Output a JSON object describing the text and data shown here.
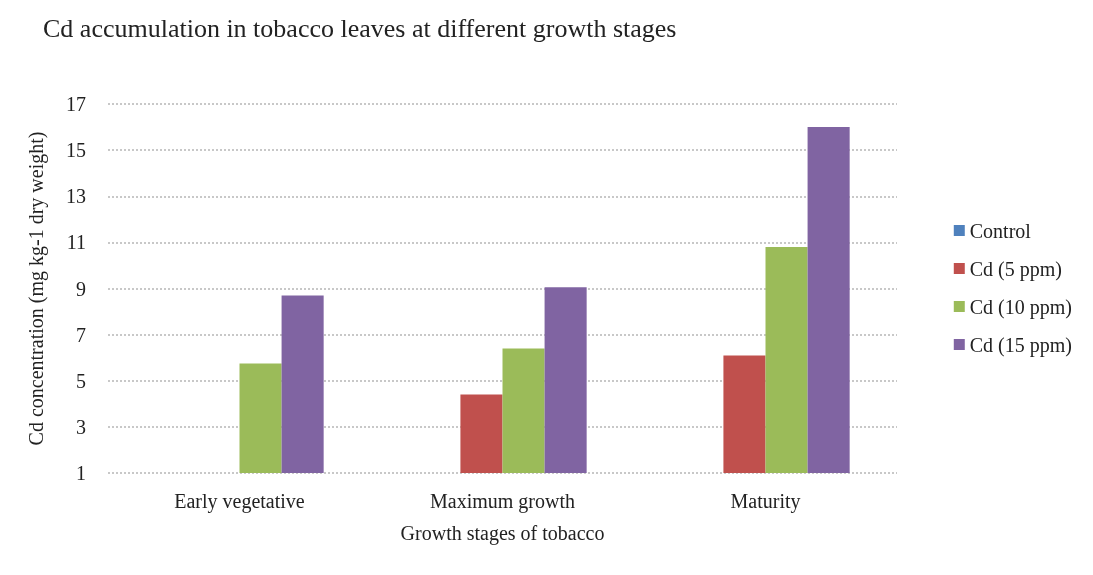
{
  "chart_data": {
    "type": "bar",
    "title": "Cd accumulation in tobacco leaves at different growth stages",
    "xlabel": "Growth stages of tobacco",
    "ylabel": "Cd concentration (mg kg-1 dry weight)",
    "categories": [
      "Early vegetative",
      "Maximum growth",
      "Maturity"
    ],
    "series": [
      {
        "name": "Control",
        "color": "#4f81bd",
        "values": [
          1,
          1,
          1
        ]
      },
      {
        "name": "Cd (5 ppm)",
        "color": "#c0504d",
        "values": [
          null,
          4.4,
          6.1
        ]
      },
      {
        "name": "Cd (10 ppm)",
        "color": "#9bbb59",
        "values": [
          5.75,
          6.4,
          10.8
        ]
      },
      {
        "name": "Cd (15 ppm)",
        "color": "#8064a2",
        "values": [
          8.7,
          9.05,
          16
        ]
      }
    ],
    "ylim": [
      1,
      17
    ],
    "yticks": [
      1,
      3,
      5,
      7,
      9,
      11,
      13,
      15,
      17
    ],
    "grid": "y",
    "legend": "right"
  }
}
